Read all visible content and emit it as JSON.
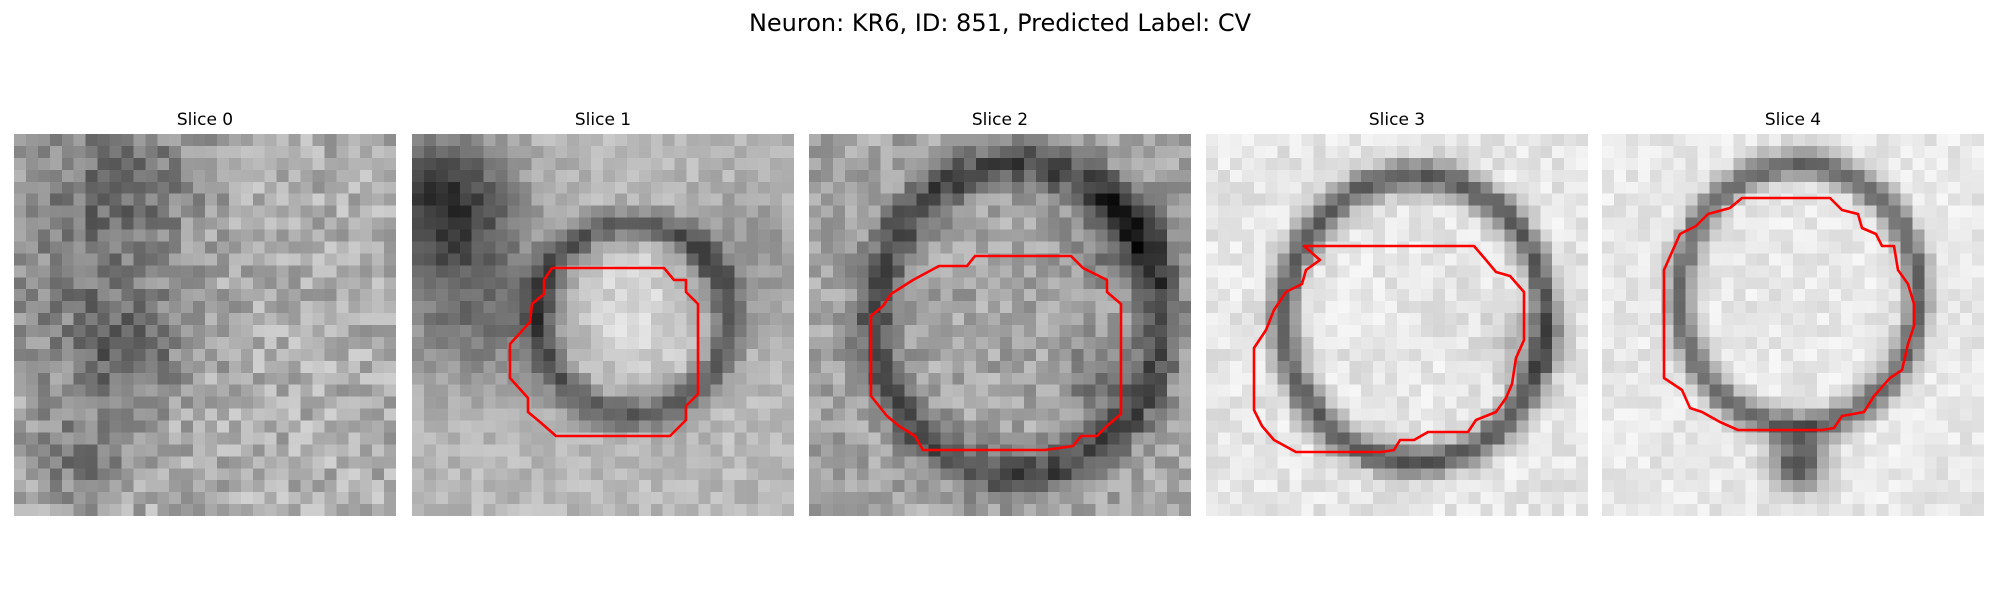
{
  "figure": {
    "title": "Neuron: KR6, ID: 851, Predicted Label: CV"
  },
  "panels": [
    {
      "title": "Slice 0",
      "has_contour": false
    },
    {
      "title": "Slice 1",
      "has_contour": true
    },
    {
      "title": "Slice 2",
      "has_contour": true
    },
    {
      "title": "Slice 3",
      "has_contour": true
    },
    {
      "title": "Slice 4",
      "has_contour": true
    }
  ],
  "colors": {
    "contour": "#ff0000"
  }
}
